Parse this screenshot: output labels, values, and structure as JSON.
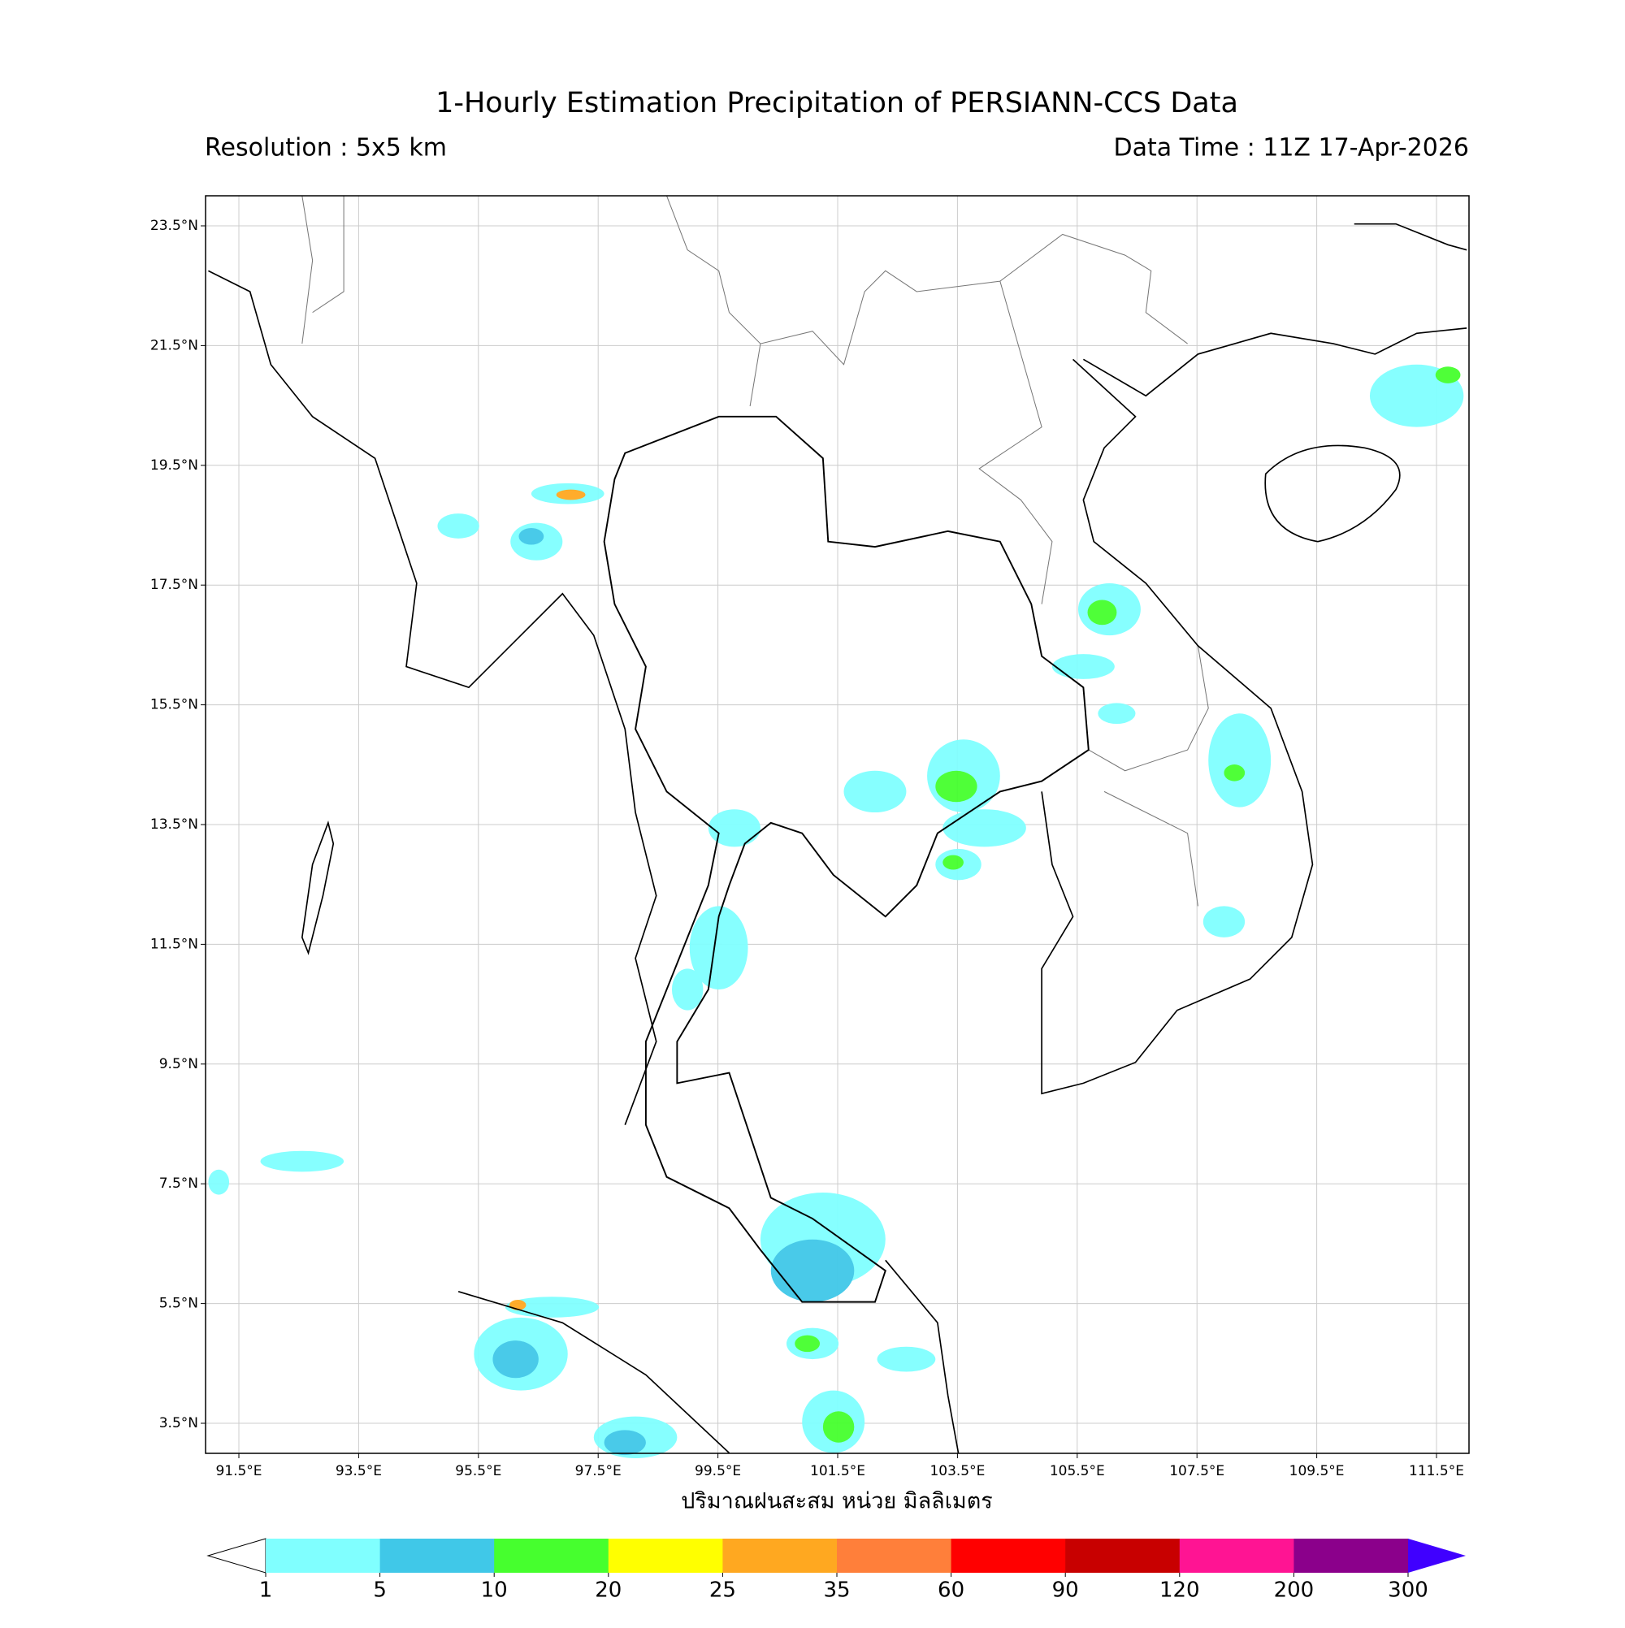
{
  "header": {
    "title": "1-Hourly Estimation Precipitation of PERSIANN-CCS Data",
    "resolution": "Resolution : 5x5 km",
    "data_time": "Data Time : 11Z 17-Apr-2026"
  },
  "map": {
    "lat_ticks": [
      {
        "value": 23.5,
        "label": "23.5°N"
      },
      {
        "value": 21.5,
        "label": "21.5°N"
      },
      {
        "value": 19.5,
        "label": "19.5°N"
      },
      {
        "value": 17.5,
        "label": "17.5°N"
      },
      {
        "value": 15.5,
        "label": "15.5°N"
      },
      {
        "value": 13.5,
        "label": "13.5°N"
      },
      {
        "value": 11.5,
        "label": "11.5°N"
      },
      {
        "value": 9.5,
        "label": "9.5°N"
      },
      {
        "value": 7.5,
        "label": "7.5°N"
      },
      {
        "value": 5.5,
        "label": "5.5°N"
      },
      {
        "value": 3.5,
        "label": "3.5°N"
      }
    ],
    "lon_ticks": [
      {
        "value": 91.5,
        "label": "91.5°E"
      },
      {
        "value": 93.5,
        "label": "93.5°E"
      },
      {
        "value": 95.5,
        "label": "95.5°E"
      },
      {
        "value": 97.5,
        "label": "97.5°E"
      },
      {
        "value": 99.5,
        "label": "99.5°E"
      },
      {
        "value": 101.5,
        "label": "101.5°E"
      },
      {
        "value": 103.5,
        "label": "103.5°E"
      },
      {
        "value": 105.5,
        "label": "105.5°E"
      },
      {
        "value": 107.5,
        "label": "107.5°E"
      },
      {
        "value": 109.5,
        "label": "109.5°E"
      },
      {
        "value": 111.5,
        "label": "111.5°E"
      }
    ],
    "grid": true
  },
  "colorbar": {
    "label": "ปริมาณฝนสะสม หน่วย มิลลิเมตร",
    "levels": [
      1,
      5,
      10,
      20,
      25,
      35,
      60,
      90,
      120,
      200,
      300
    ],
    "colors": [
      "#80ffff",
      "#40c8e8",
      "#46ff2e",
      "#ffff00",
      "#ffa820",
      "#ff7f3a",
      "#ff0000",
      "#c80000",
      "#ff1493",
      "#8b008b"
    ],
    "under_color": "#ffffff",
    "over_color": "#4000ff"
  }
}
